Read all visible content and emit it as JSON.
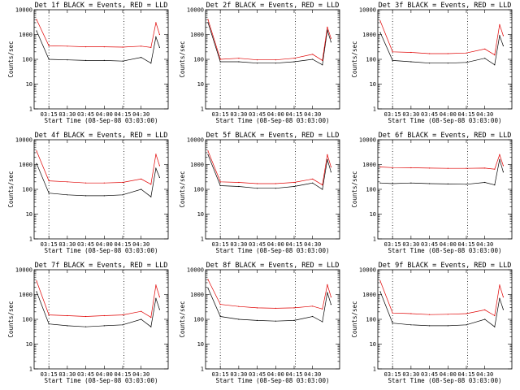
{
  "colors": {
    "events": "#000000",
    "lld": "#e00000",
    "background": "#ffffff"
  },
  "chart_data": [
    {
      "type": "line",
      "title": "Det 1f BLACK = Events, RED = LLD",
      "xlabel": "Start Time (08-Sep-08 03:03:00)",
      "ylabel": "Counts/sec",
      "yscale": "log",
      "ylim": [
        1,
        10000
      ],
      "x": [
        "03:05",
        "03:15",
        "03:30",
        "03:45",
        "04:00",
        "04:15",
        "04:30",
        "04:38",
        "04:42",
        "04:45"
      ],
      "xticks": [
        "03:15",
        "03:30",
        "03:45",
        "04:00",
        "04:15",
        "04:30"
      ],
      "vlines": [
        "03:15",
        "04:16"
      ],
      "series": [
        {
          "name": "BLACK = Events",
          "values": [
            1400,
            100,
            95,
            90,
            90,
            85,
            120,
            70,
            800,
            300
          ]
        },
        {
          "name": "RED = LLD",
          "values": [
            4000,
            350,
            340,
            320,
            320,
            310,
            340,
            300,
            3000,
            1000
          ]
        }
      ]
    },
    {
      "type": "line",
      "title": "Det 2f BLACK = Events, RED = LLD",
      "xlabel": "Start Time (08-Sep-08 03:03:00)",
      "ylabel": "Counts/sec",
      "yscale": "log",
      "ylim": [
        1,
        10000
      ],
      "x": [
        "03:05",
        "03:15",
        "03:30",
        "03:45",
        "04:00",
        "04:15",
        "04:30",
        "04:38",
        "04:42",
        "04:45"
      ],
      "xticks": [
        "03:15",
        "03:30",
        "03:45",
        "04:00",
        "04:15",
        "04:30"
      ],
      "vlines": [
        "03:15",
        "04:16"
      ],
      "series": [
        {
          "name": "BLACK = Events",
          "values": [
            3000,
            80,
            80,
            70,
            70,
            80,
            100,
            60,
            1500,
            500
          ]
        },
        {
          "name": "RED = LLD",
          "values": [
            4000,
            100,
            110,
            95,
            95,
            110,
            160,
            90,
            2000,
            700
          ]
        }
      ]
    },
    {
      "type": "line",
      "title": "Det 3f BLACK = Events, RED = LLD",
      "xlabel": "Start Time (08-Sep-08 03:03:00)",
      "ylabel": "Counts/sec",
      "yscale": "log",
      "ylim": [
        1,
        10000
      ],
      "x": [
        "03:05",
        "03:15",
        "03:30",
        "03:45",
        "04:00",
        "04:15",
        "04:30",
        "04:38",
        "04:42",
        "04:45"
      ],
      "xticks": [
        "03:15",
        "03:30",
        "03:45",
        "04:00",
        "04:15",
        "04:30"
      ],
      "vlines": [
        "03:15",
        "04:16"
      ],
      "series": [
        {
          "name": "BLACK = Events",
          "values": [
            1200,
            90,
            80,
            70,
            70,
            75,
            110,
            60,
            900,
            350
          ]
        },
        {
          "name": "RED = LLD",
          "values": [
            3500,
            200,
            190,
            170,
            170,
            180,
            260,
            150,
            2500,
            900
          ]
        }
      ]
    },
    {
      "type": "line",
      "title": "Det 4f BLACK = Events, RED = LLD",
      "xlabel": "Start Time (08-Sep-08 03:03:00)",
      "ylabel": "Counts/sec",
      "yscale": "log",
      "ylim": [
        1,
        10000
      ],
      "x": [
        "03:05",
        "03:15",
        "03:30",
        "03:45",
        "04:00",
        "04:15",
        "04:30",
        "04:38",
        "04:42",
        "04:45"
      ],
      "xticks": [
        "03:15",
        "03:30",
        "03:45",
        "04:00",
        "04:15",
        "04:30"
      ],
      "vlines": [
        "03:15",
        "04:16"
      ],
      "series": [
        {
          "name": "BLACK = Events",
          "values": [
            1100,
            70,
            60,
            55,
            55,
            60,
            100,
            50,
            700,
            300
          ]
        },
        {
          "name": "RED = LLD",
          "values": [
            3500,
            220,
            200,
            180,
            180,
            190,
            260,
            160,
            2600,
            900
          ]
        }
      ]
    },
    {
      "type": "line",
      "title": "Det 5f BLACK = Events, RED = LLD",
      "xlabel": "Start Time (08-Sep-08 03:03:00)",
      "ylabel": "Counts/sec",
      "yscale": "log",
      "ylim": [
        1,
        10000
      ],
      "x": [
        "03:05",
        "03:15",
        "03:30",
        "03:45",
        "04:00",
        "04:15",
        "04:30",
        "04:38",
        "04:42",
        "04:45"
      ],
      "xticks": [
        "03:15",
        "03:30",
        "03:45",
        "04:00",
        "04:15",
        "04:30"
      ],
      "vlines": [
        "03:15",
        "04:16"
      ],
      "series": [
        {
          "name": "BLACK = Events",
          "values": [
            2500,
            140,
            130,
            110,
            110,
            130,
            180,
            100,
            1600,
            500
          ]
        },
        {
          "name": "RED = LLD",
          "values": [
            3500,
            200,
            190,
            170,
            170,
            190,
            260,
            150,
            2500,
            800
          ]
        }
      ]
    },
    {
      "type": "line",
      "title": "Det 6f BLACK = Events, RED = LLD",
      "xlabel": "Start Time (08-Sep-08 03:03:00)",
      "ylabel": "Counts/sec",
      "yscale": "log",
      "ylim": [
        1,
        10000
      ],
      "x": [
        "03:05",
        "03:15",
        "03:30",
        "03:45",
        "04:00",
        "04:15",
        "04:30",
        "04:38",
        "04:42",
        "04:45"
      ],
      "xticks": [
        "03:15",
        "03:30",
        "03:45",
        "04:00",
        "04:15",
        "04:30"
      ],
      "vlines": [
        "03:15",
        "04:16"
      ],
      "series": [
        {
          "name": "BLACK = Events",
          "values": [
            180,
            170,
            180,
            170,
            165,
            160,
            190,
            150,
            1600,
            500
          ]
        },
        {
          "name": "RED = LLD",
          "values": [
            800,
            750,
            740,
            720,
            700,
            700,
            720,
            650,
            2500,
            900
          ]
        }
      ]
    },
    {
      "type": "line",
      "title": "Det 7f BLACK = Events, RED = LLD",
      "xlabel": "Start Time (08-Sep-08 03:03:00)",
      "ylabel": "Counts/sec",
      "yscale": "log",
      "ylim": [
        1,
        10000
      ],
      "x": [
        "03:05",
        "03:15",
        "03:30",
        "03:45",
        "04:00",
        "04:15",
        "04:30",
        "04:38",
        "04:42",
        "04:45"
      ],
      "xticks": [
        "03:15",
        "03:30",
        "03:45",
        "04:00",
        "04:15",
        "04:30"
      ],
      "vlines": [
        "03:15",
        "04:16"
      ],
      "series": [
        {
          "name": "BLACK = Events",
          "values": [
            1300,
            65,
            55,
            50,
            55,
            60,
            100,
            50,
            700,
            250
          ]
        },
        {
          "name": "RED = LLD",
          "values": [
            3500,
            150,
            140,
            130,
            140,
            150,
            210,
            120,
            2400,
            800
          ]
        }
      ]
    },
    {
      "type": "line",
      "title": "Det 8f BLACK = Events, RED = LLD",
      "xlabel": "Start Time (08-Sep-08 03:03:00)",
      "ylabel": "Counts/sec",
      "yscale": "log",
      "ylim": [
        1,
        10000
      ],
      "x": [
        "03:05",
        "03:15",
        "03:30",
        "03:45",
        "04:00",
        "04:15",
        "04:30",
        "04:38",
        "04:42",
        "04:45"
      ],
      "xticks": [
        "03:15",
        "03:30",
        "03:45",
        "04:00",
        "04:15",
        "04:30"
      ],
      "vlines": [
        "03:15",
        "04:16"
      ],
      "series": [
        {
          "name": "BLACK = Events",
          "values": [
            1800,
            130,
            100,
            90,
            85,
            90,
            130,
            80,
            1200,
            400
          ]
        },
        {
          "name": "RED = LLD",
          "values": [
            4000,
            400,
            330,
            290,
            280,
            290,
            340,
            260,
            2500,
            800
          ]
        }
      ]
    },
    {
      "type": "line",
      "title": "Det 9f BLACK = Events, RED = LLD",
      "xlabel": "Start Time (08-Sep-08 03:03:00)",
      "ylabel": "Counts/sec",
      "yscale": "log",
      "ylim": [
        1,
        10000
      ],
      "x": [
        "03:05",
        "03:15",
        "03:30",
        "03:45",
        "04:00",
        "04:15",
        "04:30",
        "04:38",
        "04:42",
        "04:45"
      ],
      "xticks": [
        "03:15",
        "03:30",
        "03:45",
        "04:00",
        "04:15",
        "04:30"
      ],
      "vlines": [
        "03:15",
        "04:16"
      ],
      "series": [
        {
          "name": "BLACK = Events",
          "values": [
            1300,
            70,
            60,
            55,
            55,
            60,
            100,
            50,
            700,
            250
          ]
        },
        {
          "name": "RED = LLD",
          "values": [
            3500,
            180,
            170,
            155,
            160,
            170,
            240,
            140,
            2400,
            800
          ]
        }
      ]
    }
  ]
}
